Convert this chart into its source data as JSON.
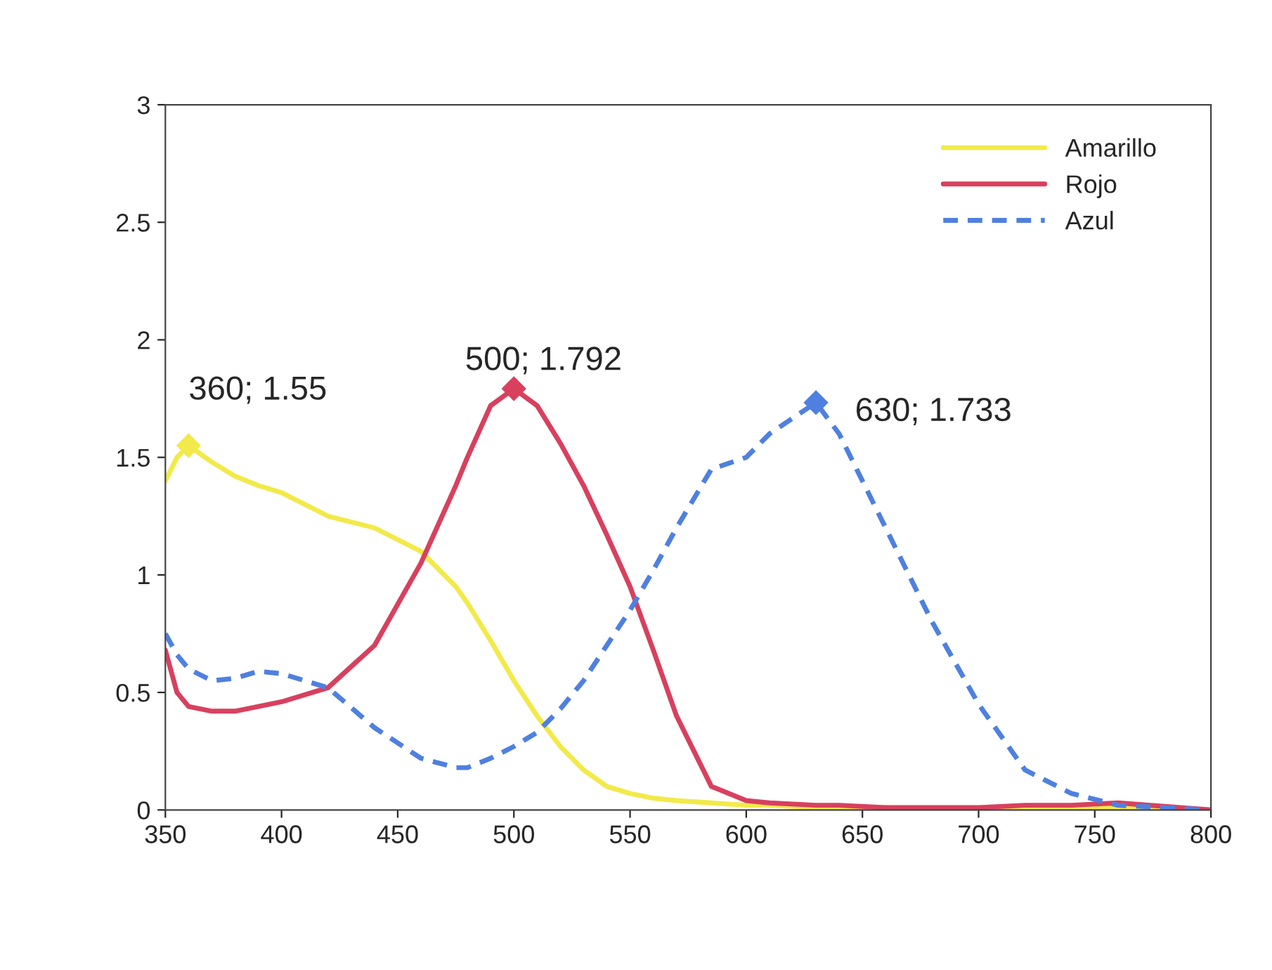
{
  "chart_data": {
    "type": "line",
    "x": [
      350,
      355,
      360,
      370,
      380,
      390,
      400,
      420,
      440,
      460,
      475,
      480,
      490,
      500,
      510,
      520,
      530,
      540,
      550,
      560,
      570,
      585,
      600,
      610,
      630,
      640,
      660,
      680,
      700,
      720,
      740,
      760,
      800
    ],
    "series": [
      {
        "name": "Amarillo",
        "color": "#f2ea4a",
        "line_style": "solid",
        "values": [
          1.4,
          1.5,
          1.55,
          1.48,
          1.42,
          1.38,
          1.35,
          1.25,
          1.2,
          1.1,
          0.95,
          0.88,
          0.72,
          0.55,
          0.4,
          0.27,
          0.17,
          0.1,
          0.07,
          0.05,
          0.04,
          0.03,
          0.02,
          0.02,
          0.01,
          0.01,
          0.01,
          0.01,
          0.01,
          0.01,
          0.01,
          0.01,
          0.0
        ]
      },
      {
        "name": "Rojo",
        "color": "#d8405e",
        "line_style": "solid",
        "values": [
          0.68,
          0.5,
          0.44,
          0.42,
          0.42,
          0.44,
          0.46,
          0.52,
          0.7,
          1.05,
          1.38,
          1.5,
          1.72,
          1.792,
          1.72,
          1.56,
          1.38,
          1.17,
          0.95,
          0.68,
          0.4,
          0.1,
          0.04,
          0.03,
          0.02,
          0.02,
          0.01,
          0.01,
          0.01,
          0.02,
          0.02,
          0.03,
          0.0
        ]
      },
      {
        "name": "Azul",
        "color": "#4f80e0",
        "line_style": "dashed",
        "values": [
          0.75,
          0.66,
          0.6,
          0.55,
          0.56,
          0.59,
          0.58,
          0.52,
          0.35,
          0.22,
          0.18,
          0.18,
          0.22,
          0.27,
          0.33,
          0.43,
          0.55,
          0.7,
          0.85,
          1.02,
          1.2,
          1.45,
          1.5,
          1.6,
          1.733,
          1.6,
          1.2,
          0.8,
          0.45,
          0.17,
          0.07,
          0.02,
          0.0
        ]
      }
    ],
    "annotations": [
      {
        "text": "360; 1.55",
        "x": 360,
        "y": 1.55
      },
      {
        "text": "500; 1.792",
        "x": 500,
        "y": 1.792
      },
      {
        "text": "630; 1.733",
        "x": 630,
        "y": 1.733
      }
    ],
    "marker": "none",
    "xlim": [
      350,
      800
    ],
    "xticks": [
      350,
      400,
      450,
      500,
      550,
      600,
      650,
      700,
      750,
      800
    ],
    "ylim": [
      0,
      3
    ],
    "yticks": [
      0,
      0.5,
      1,
      1.5,
      2,
      2.5,
      3
    ],
    "grid": false,
    "legend": "top right"
  }
}
